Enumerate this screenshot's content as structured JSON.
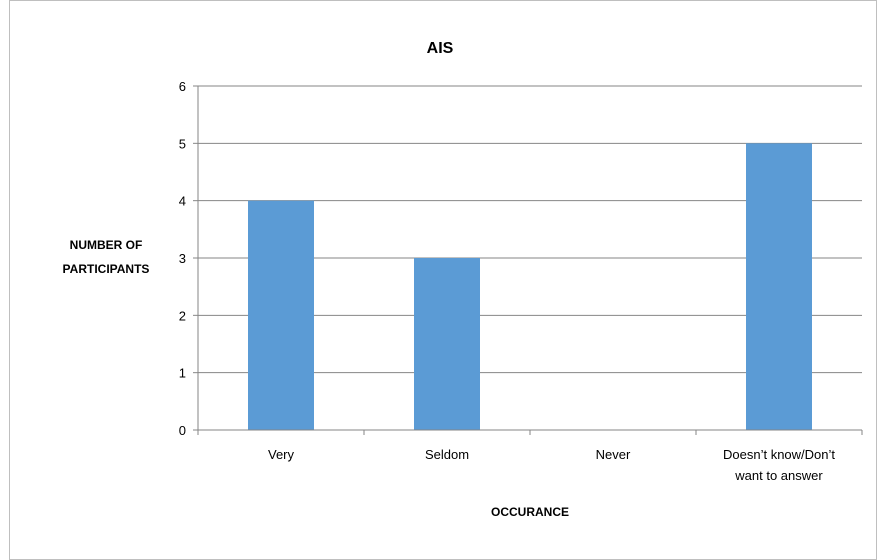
{
  "chart_data": {
    "type": "bar",
    "title": "AIS",
    "xlabel": "OCCURANCE",
    "ylabel": [
      "NUMBER OF",
      "PARTICIPANTS"
    ],
    "categories": [
      [
        "Very"
      ],
      [
        "Seldom"
      ],
      [
        "Never"
      ],
      [
        "Doesn’t know/Don’t",
        "want to answer"
      ]
    ],
    "values": [
      4,
      3,
      0,
      5
    ],
    "ylim": [
      0,
      6
    ],
    "yticks": [
      0,
      1,
      2,
      3,
      4,
      5,
      6
    ],
    "bar_color": "#5b9bd5",
    "grid": true,
    "legend": "none"
  }
}
